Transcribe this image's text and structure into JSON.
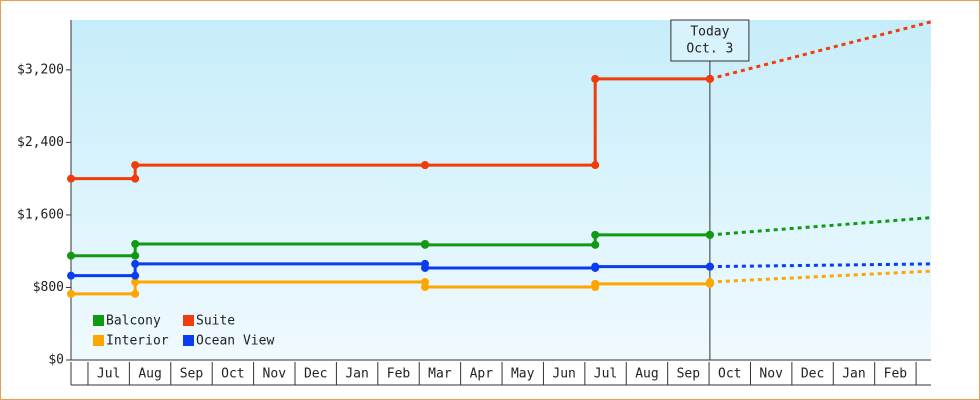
{
  "chart_data": {
    "type": "step-line",
    "categories": [
      "Jul",
      "Aug",
      "Sep",
      "Oct",
      "Nov",
      "Dec",
      "Jan",
      "Feb",
      "Mar",
      "Apr",
      "May",
      "Jun",
      "Jul",
      "Aug",
      "Sep",
      "Oct",
      "Nov",
      "Dec",
      "Jan",
      "Feb"
    ],
    "x": [
      -0.41,
      1.14,
      8.14,
      12.25,
      15.02
    ],
    "forecast_x": [
      20.36
    ],
    "xlim": [
      -0.41,
      20.36
    ],
    "ylim": [
      0,
      3750
    ],
    "yticks": [
      {
        "value": 0,
        "label": "$0"
      },
      {
        "value": 800,
        "label": "$800"
      },
      {
        "value": 1600,
        "label": "$1,600"
      },
      {
        "value": 2400,
        "label": "$2,400"
      },
      {
        "value": 3200,
        "label": "$3,200"
      }
    ],
    "annotation": {
      "x": 15.02,
      "lines": [
        "Today",
        "Oct. 3"
      ]
    },
    "series": [
      {
        "name": "Balcony",
        "color": "#119911",
        "values": [
          1150,
          1280,
          1270,
          1380,
          1380
        ],
        "forecast": [
          1570
        ]
      },
      {
        "name": "Suite",
        "color": "#f03c0a",
        "values": [
          2000,
          2150,
          2150,
          3100,
          3100
        ],
        "forecast": [
          3730
        ]
      },
      {
        "name": "Interior",
        "color": "#ffa500",
        "values": [
          730,
          860,
          805,
          840,
          860
        ],
        "forecast": [
          980
        ]
      },
      {
        "name": "Ocean View",
        "color": "#0a3cf0",
        "values": [
          930,
          1060,
          1015,
          1030,
          1030
        ],
        "forecast": [
          1060
        ]
      }
    ]
  }
}
